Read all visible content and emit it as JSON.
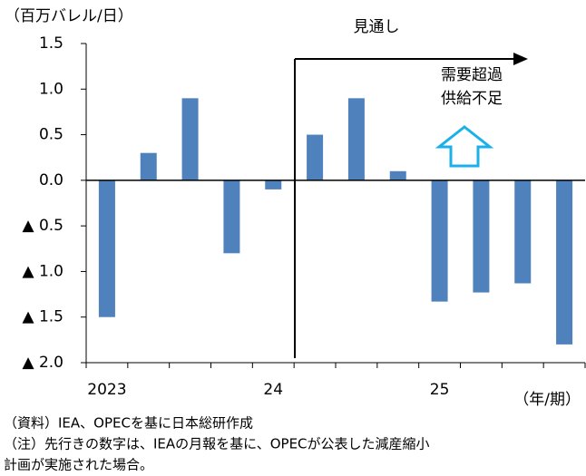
{
  "chart_data": {
    "type": "bar",
    "y_unit_label": "（百万バレル/日）",
    "x_unit_label": "（年/期）",
    "annotations": [
      "見通し",
      "需要超過",
      "供給不足"
    ],
    "categories": [
      "2023",
      null,
      null,
      null,
      "24",
      null,
      null,
      null,
      "25",
      null,
      null,
      null
    ],
    "values": [
      -1.5,
      0.3,
      0.9,
      -0.8,
      -0.1,
      0.5,
      0.9,
      0.1,
      -1.33,
      -1.23,
      -1.13,
      -1.8
    ],
    "color": "#4f81bd",
    "ylim": [
      -2.0,
      1.5
    ],
    "yticks": [
      1.5,
      {
        "value": 1.0,
        "label": "1.0"
      },
      0.5,
      {
        "value": 0.0,
        "label": "0.0"
      },
      {
        "value": -0.5,
        "label": "▲ 0.5"
      },
      {
        "value": -1.0,
        "label": "▲ 1.0"
      },
      {
        "value": -1.5,
        "label": "▲ 1.5"
      },
      {
        "value": -2.0,
        "label": "▲ 2.0"
      }
    ],
    "notes": [
      "（資料）IEA、OPECを基に日本総研作成",
      "（注）先行きの数字は、IEAの月報を基に、OPECが公表した減産縮小",
      "計画が実施された場合。"
    ]
  }
}
